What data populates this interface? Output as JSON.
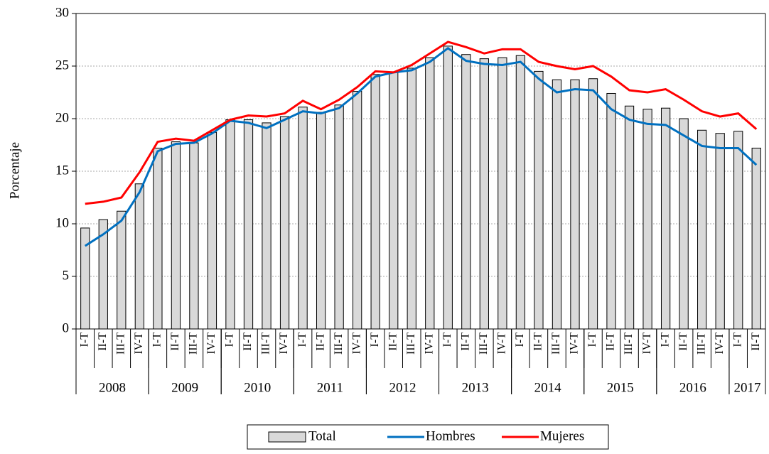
{
  "chart_data": {
    "type": "bar_line",
    "y_label": "Porcentaje",
    "groups": [
      {
        "label": "2008",
        "categories": [
          "I-T",
          "II-T",
          "III-T",
          "IV-T"
        ]
      },
      {
        "label": "2009",
        "categories": [
          "I-T",
          "II-T",
          "III-T",
          "IV-T"
        ]
      },
      {
        "label": "2010",
        "categories": [
          "I-T",
          "II-T",
          "III-T",
          "IV-T"
        ]
      },
      {
        "label": "2011",
        "categories": [
          "I-T",
          "II-T",
          "III-T",
          "IV-T"
        ]
      },
      {
        "label": "2012",
        "categories": [
          "I-T",
          "II-T",
          "III-T",
          "IV-T"
        ]
      },
      {
        "label": "2013",
        "categories": [
          "I-T",
          "II-T",
          "III-T",
          "IV-T"
        ]
      },
      {
        "label": "2014",
        "categories": [
          "I-T",
          "II-T",
          "III-T",
          "IV-T"
        ]
      },
      {
        "label": "2015",
        "categories": [
          "I-T",
          "II-T",
          "III-T",
          "IV-T"
        ]
      },
      {
        "label": "2016",
        "categories": [
          "I-T",
          "II-T",
          "III-T",
          "IV-T"
        ]
      },
      {
        "label": "2017",
        "categories": [
          "I-T",
          "II-T"
        ]
      }
    ],
    "series": [
      {
        "name": "Total",
        "kind": "bar",
        "color": "#d9d9d9",
        "values": [
          9.6,
          10.4,
          11.2,
          13.8,
          17.2,
          17.8,
          17.7,
          18.7,
          19.9,
          19.9,
          19.6,
          20.2,
          21.1,
          20.6,
          21.3,
          22.6,
          24.2,
          24.4,
          24.8,
          25.8,
          26.9,
          26.1,
          25.7,
          25.8,
          26.0,
          24.5,
          23.7,
          23.7,
          23.8,
          22.4,
          21.2,
          20.9,
          21.0,
          20.0,
          18.9,
          18.6,
          18.8,
          17.2
        ]
      },
      {
        "name": "Hombres",
        "kind": "line",
        "color": "#0070c0",
        "values": [
          7.9,
          9.0,
          10.3,
          13.0,
          16.9,
          17.6,
          17.7,
          18.6,
          19.8,
          19.6,
          19.1,
          19.9,
          20.7,
          20.5,
          21.0,
          22.4,
          24.0,
          24.4,
          24.6,
          25.4,
          26.7,
          25.5,
          25.2,
          25.1,
          25.4,
          23.8,
          22.5,
          22.8,
          22.7,
          20.9,
          19.9,
          19.5,
          19.4,
          18.4,
          17.4,
          17.2,
          17.2,
          15.6
        ]
      },
      {
        "name": "Mujeres",
        "kind": "line",
        "color": "#ff0000",
        "values": [
          11.9,
          12.1,
          12.5,
          14.9,
          17.8,
          18.1,
          17.9,
          18.9,
          19.9,
          20.3,
          20.2,
          20.5,
          21.7,
          20.9,
          21.8,
          23.0,
          24.5,
          24.4,
          25.1,
          26.2,
          27.3,
          26.8,
          26.2,
          26.6,
          26.6,
          25.4,
          25.0,
          24.7,
          25.0,
          24.0,
          22.7,
          22.5,
          22.8,
          21.8,
          20.7,
          20.2,
          20.5,
          19.0
        ]
      }
    ],
    "ylim": [
      0,
      30
    ],
    "yticks": [
      0,
      5,
      10,
      15,
      20,
      25,
      30
    ],
    "grid": true
  }
}
